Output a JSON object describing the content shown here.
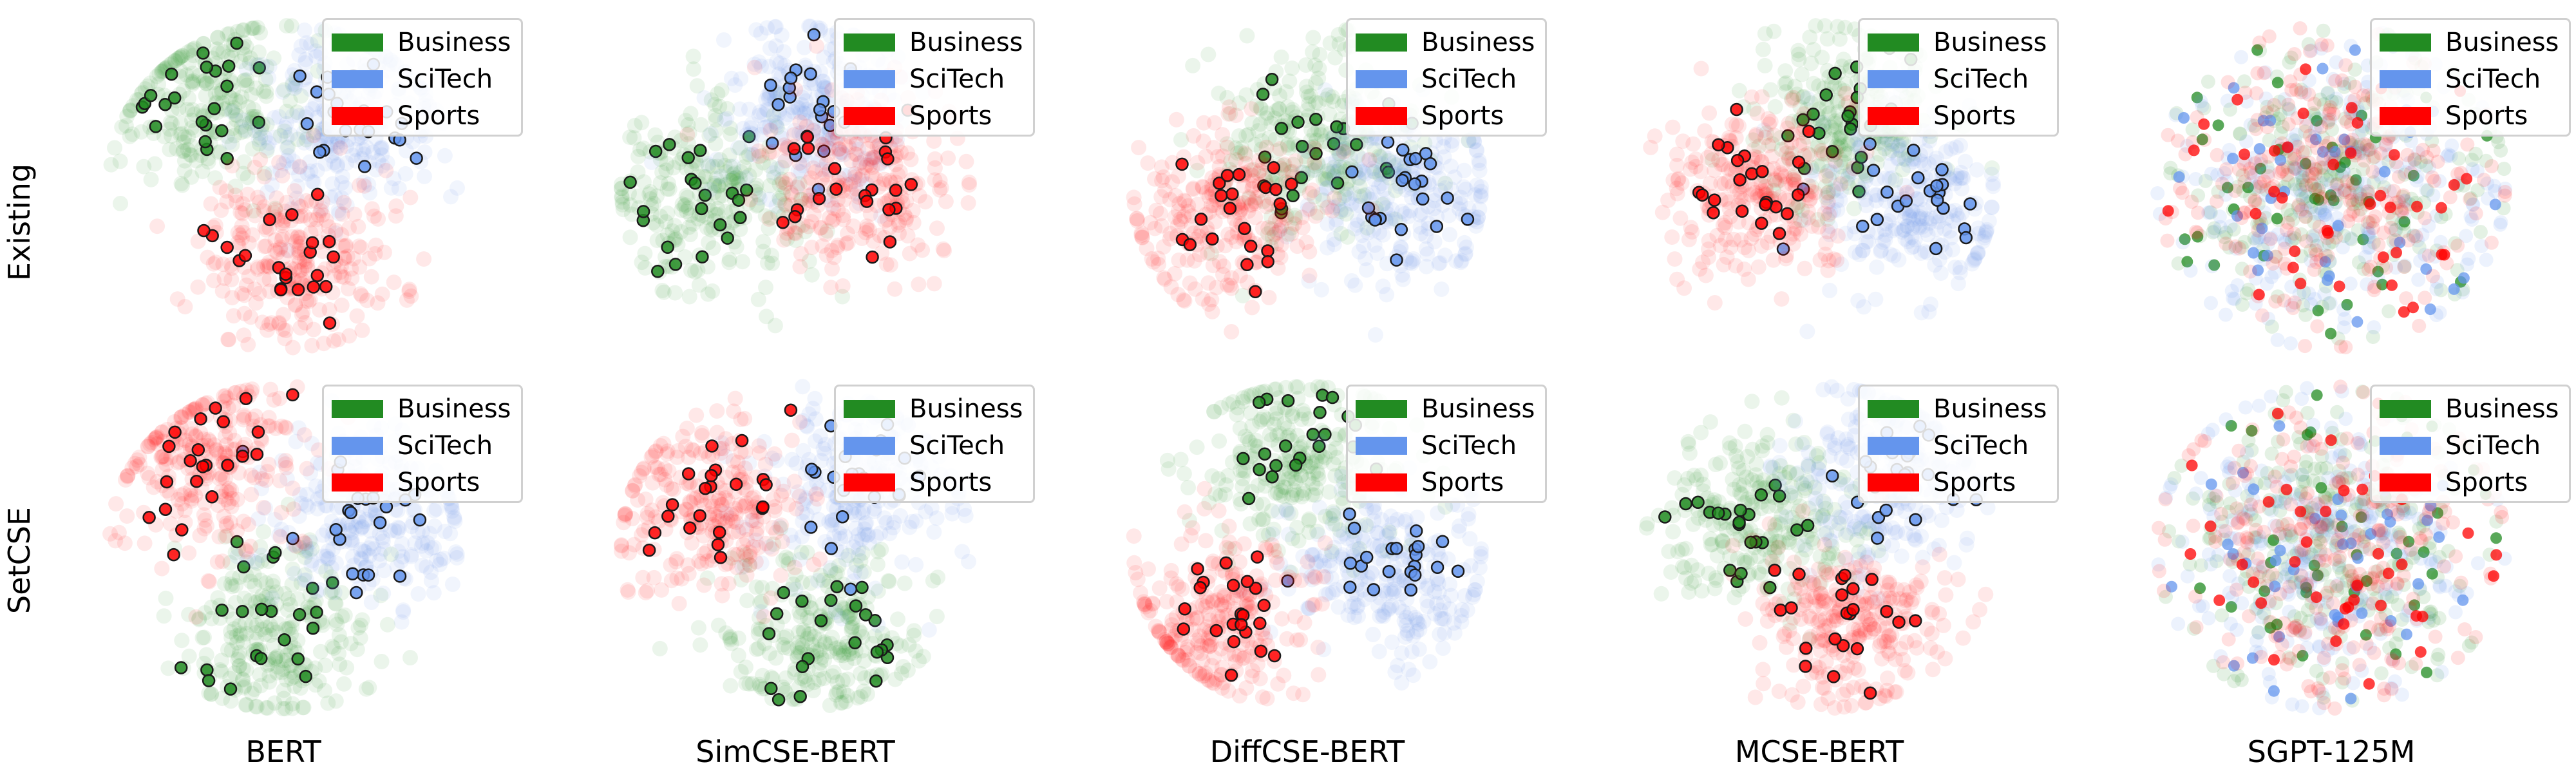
{
  "chart_data": {
    "type": "scatter",
    "description_rows": [
      "Existing",
      "SetCSE"
    ],
    "columns": [
      "BERT",
      "SimCSE-BERT",
      "DiffCSE-BERT",
      "MCSE-BERT",
      "SGPT-125M"
    ],
    "legend": {
      "placement": "top-right",
      "entries": [
        {
          "name": "Business",
          "color": "#228b22"
        },
        {
          "name": "SciTech",
          "color": "#6495ed"
        },
        {
          "name": "Sports",
          "color": "#ff0000"
        }
      ]
    },
    "axes_visible": false,
    "grid": false,
    "panels": [
      {
        "row": "Existing",
        "column": "BERT",
        "cluster_centers": {
          "Business": [
            -0.45,
            0.55
          ],
          "SciTech": [
            0.35,
            0.45
          ],
          "Sports": [
            0.05,
            -0.45
          ]
        }
      },
      {
        "row": "Existing",
        "column": "SimCSE-BERT",
        "cluster_centers": {
          "Business": [
            -0.55,
            -0.1
          ],
          "SciTech": [
            0.1,
            0.5
          ],
          "Sports": [
            0.35,
            0.0
          ]
        }
      },
      {
        "row": "Existing",
        "column": "DiffCSE-BERT",
        "cluster_centers": {
          "Business": [
            0.05,
            0.3
          ],
          "SciTech": [
            0.55,
            -0.05
          ],
          "Sports": [
            -0.45,
            -0.15
          ]
        }
      },
      {
        "row": "Existing",
        "column": "MCSE-BERT",
        "cluster_centers": {
          "Business": [
            0.15,
            0.45
          ],
          "SciTech": [
            0.55,
            -0.1
          ],
          "Sports": [
            -0.4,
            0.0
          ]
        }
      },
      {
        "row": "Existing",
        "column": "SGPT-125M",
        "cluster_centers": {
          "Business": [
            0.0,
            0.0
          ],
          "SciTech": [
            0.0,
            0.0
          ],
          "Sports": [
            0.0,
            0.0
          ]
        }
      },
      {
        "row": "SetCSE",
        "column": "BERT",
        "cluster_centers": {
          "Business": [
            -0.05,
            -0.55
          ],
          "SciTech": [
            0.45,
            0.2
          ],
          "Sports": [
            -0.45,
            0.55
          ]
        }
      },
      {
        "row": "SetCSE",
        "column": "SimCSE-BERT",
        "cluster_centers": {
          "Business": [
            0.15,
            -0.55
          ],
          "SciTech": [
            0.35,
            0.35
          ],
          "Sports": [
            -0.5,
            0.25
          ]
        }
      },
      {
        "row": "SetCSE",
        "column": "DiffCSE-BERT",
        "cluster_centers": {
          "Business": [
            -0.05,
            0.55
          ],
          "SciTech": [
            0.5,
            -0.15
          ],
          "Sports": [
            -0.5,
            -0.45
          ]
        }
      },
      {
        "row": "SetCSE",
        "column": "MCSE-BERT",
        "cluster_centers": {
          "Business": [
            -0.35,
            0.15
          ],
          "SciTech": [
            0.4,
            0.45
          ],
          "Sports": [
            0.15,
            -0.5
          ]
        }
      },
      {
        "row": "SetCSE",
        "column": "SGPT-125M",
        "cluster_centers": {
          "Business": [
            0.0,
            0.0
          ],
          "SciTech": [
            0.0,
            0.0
          ],
          "Sports": [
            0.0,
            0.0
          ]
        }
      }
    ]
  }
}
